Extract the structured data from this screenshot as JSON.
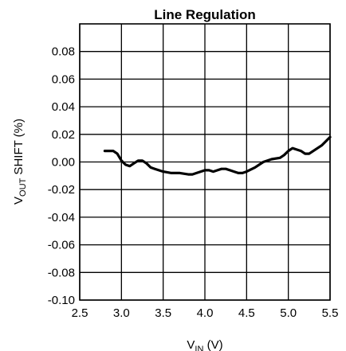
{
  "chart_data": {
    "type": "line",
    "title": "Line Regulation",
    "xlabel": {
      "main": "V",
      "sub": "IN",
      "unit": " (V)"
    },
    "ylabel": {
      "main": "V",
      "sub": "OUT",
      "unit": " SHIFT (%)"
    },
    "xlim": [
      2.5,
      5.5
    ],
    "ylim": [
      -0.1,
      0.1
    ],
    "x_ticks": [
      "2.5",
      "3.0",
      "3.5",
      "4.0",
      "4.5",
      "5.0",
      "5.5"
    ],
    "x_tick_values": [
      2.5,
      3.0,
      3.5,
      4.0,
      4.5,
      5.0,
      5.5
    ],
    "y_ticks": [
      "0.08",
      "0.06",
      "0.04",
      "0.02",
      "0.00",
      "-0.02",
      "-0.04",
      "-0.06",
      "-0.08",
      "-0.10"
    ],
    "y_tick_values": [
      0.08,
      0.06,
      0.04,
      0.02,
      0.0,
      -0.02,
      -0.04,
      -0.06,
      -0.08,
      -0.1
    ],
    "grid": true,
    "series": [
      {
        "x": [
          2.8,
          2.9,
          2.95,
          3.0,
          3.05,
          3.1,
          3.15,
          3.2,
          3.25,
          3.3,
          3.35,
          3.4,
          3.5,
          3.6,
          3.7,
          3.8,
          3.85,
          3.9,
          3.95,
          4.0,
          4.05,
          4.1,
          4.15,
          4.2,
          4.25,
          4.3,
          4.35,
          4.4,
          4.45,
          4.5,
          4.6,
          4.7,
          4.8,
          4.9,
          4.95,
          5.0,
          5.05,
          5.1,
          5.15,
          5.2,
          5.25,
          5.3,
          5.4,
          5.5
        ],
        "y": [
          0.008,
          0.008,
          0.006,
          0.001,
          -0.002,
          -0.003,
          -0.001,
          0.001,
          0.001,
          -0.001,
          -0.004,
          -0.005,
          -0.007,
          -0.008,
          -0.008,
          -0.009,
          -0.009,
          -0.008,
          -0.007,
          -0.006,
          -0.006,
          -0.007,
          -0.006,
          -0.005,
          -0.005,
          -0.006,
          -0.007,
          -0.008,
          -0.008,
          -0.007,
          -0.004,
          0.0,
          0.002,
          0.003,
          0.005,
          0.008,
          0.01,
          0.009,
          0.008,
          0.006,
          0.006,
          0.008,
          0.012,
          0.018
        ]
      }
    ]
  }
}
